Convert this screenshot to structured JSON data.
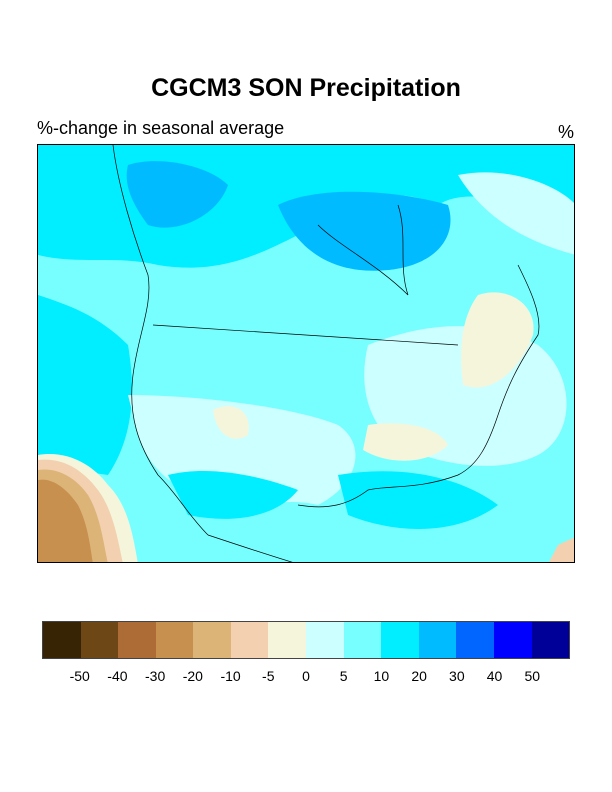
{
  "title": "CGCM3 SON Precipitation",
  "subtitle": "%-change in seasonal average",
  "units": "%",
  "colorbar": {
    "colors": [
      "#372405",
      "#6e4716",
      "#ad6b36",
      "#c8904f",
      "#ddb478",
      "#f3d1b0",
      "#f5f5dc",
      "#ccffff",
      "#77ffff",
      "#00eeff",
      "#00bbff",
      "#0066ff",
      "#0000ff",
      "#000099"
    ],
    "labels": [
      "-50",
      "-40",
      "-30",
      "-20",
      "-10",
      "-5",
      "0",
      "5",
      "10",
      "20",
      "30",
      "40",
      "50"
    ]
  }
}
